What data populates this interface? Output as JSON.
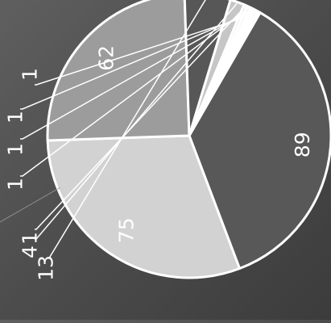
{
  "chart_data": {
    "type": "pie",
    "title": "",
    "slices": [
      {
        "value": 89,
        "label": "89",
        "color": "#585858"
      },
      {
        "value": 75,
        "label": "75",
        "color": "#d2d2d2"
      },
      {
        "value": 62,
        "label": "62",
        "color": "#9c9c9c"
      },
      {
        "value": 13,
        "label": "13",
        "color": "#575757"
      },
      {
        "value": 4,
        "label": "4",
        "color": "#c6c6c6"
      },
      {
        "value": 1,
        "label": "1",
        "color": "#e8e8e8"
      },
      {
        "value": 1,
        "label": "1",
        "color": "#f2f2f2"
      },
      {
        "value": 1,
        "label": "1",
        "color": "#ffffff"
      },
      {
        "value": 1,
        "label": "1",
        "color": "#ffffff"
      },
      {
        "value": 1,
        "label": "1",
        "color": "#ffffff"
      }
    ],
    "rotation": "text rotated 90° counter-clockwise",
    "legend": "none",
    "label_color": "#ffffff",
    "edge_color": "#ffffff"
  }
}
